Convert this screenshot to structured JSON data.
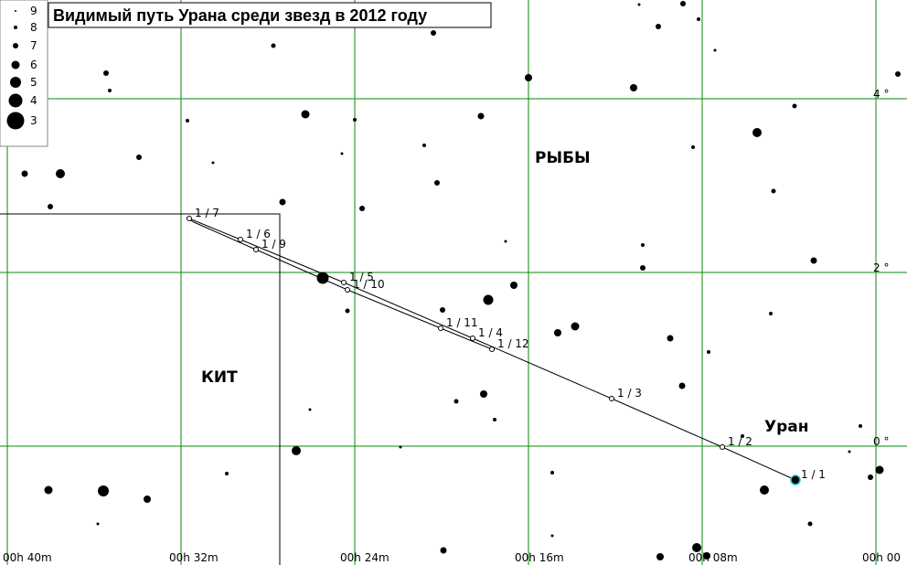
{
  "title": "Видимый путь Урана среди звезд в 2012 году",
  "legend": {
    "magnitudes": [
      9,
      8,
      7,
      6,
      5,
      4,
      3
    ]
  },
  "ra_labels": [
    "00h 40m",
    "00h 32m",
    "00h 24m",
    "00h 16m",
    "00h 08m",
    "00h 00"
  ],
  "dec_labels": [
    "4 °",
    "2 °",
    "0 °"
  ],
  "constellations": [
    "РЫБЫ",
    "КИТ"
  ],
  "planet": "Уран",
  "dates": [
    "1 / 1",
    "1 / 2",
    "1 / 3",
    "1 / 4",
    "1 / 5",
    "1 / 6",
    "1 / 7",
    "1 / 9",
    "1 / 10",
    "1 / 11",
    "1 / 12"
  ]
}
